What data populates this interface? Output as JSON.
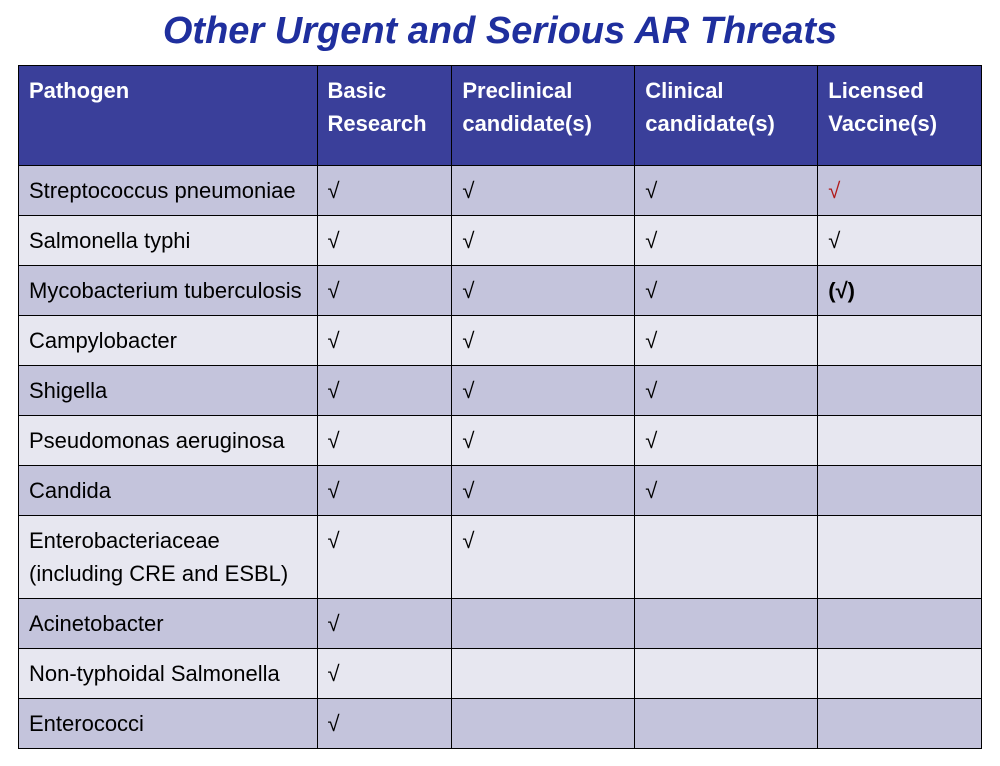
{
  "title": {
    "text": "Other Urgent and Serious AR Threats",
    "color": "#1f2f9e",
    "fontsize": 38
  },
  "table": {
    "header_bg": "#3a3f9a",
    "header_fg": "#ffffff",
    "header_fontsize": 22,
    "row_alt_bg_1": "#c4c4dc",
    "row_alt_bg_2": "#e7e7f0",
    "body_fg": "#000000",
    "body_fontsize": 22,
    "checkmark": "√",
    "checkmark_color": "#000000",
    "checkmark_highlight_color": "#b11a1a",
    "paren_check": "(√)",
    "col_widths": [
      "31%",
      "14%",
      "19%",
      "19%",
      "17%"
    ],
    "columns": [
      "Pathogen",
      "Basic Research",
      "Preclinical candidate(s)",
      "Clinical candidate(s)",
      "Licensed Vaccine(s)"
    ],
    "rows": [
      {
        "pathogen": "Streptococcus pneumoniae",
        "basic": "check",
        "preclinical": "check",
        "clinical": "check",
        "licensed": "check_red",
        "shade": 1
      },
      {
        "pathogen": "Salmonella typhi",
        "basic": "check",
        "preclinical": "check",
        "clinical": "check",
        "licensed": "check",
        "shade": 2
      },
      {
        "pathogen": "Mycobacterium tuberculosis",
        "basic": "check",
        "preclinical": "check",
        "clinical": "check",
        "licensed": "paren_check",
        "shade": 1
      },
      {
        "pathogen": "Campylobacter",
        "basic": "check",
        "preclinical": "check",
        "clinical": "check",
        "licensed": "",
        "shade": 2
      },
      {
        "pathogen": "Shigella",
        "basic": "check",
        "preclinical": "check",
        "clinical": "check",
        "licensed": "",
        "shade": 1
      },
      {
        "pathogen": "Pseudomonas aeruginosa",
        "basic": "check",
        "preclinical": "check",
        "clinical": "check",
        "licensed": "",
        "shade": 2
      },
      {
        "pathogen": "Candida",
        "basic": "check",
        "preclinical": "check",
        "clinical": "check",
        "licensed": "",
        "shade": 1
      },
      {
        "pathogen": "Enterobacteriaceae (including CRE and ESBL)",
        "basic": "check",
        "preclinical": "check",
        "clinical": "",
        "licensed": "",
        "shade": 2
      },
      {
        "pathogen": "Acinetobacter",
        "basic": "check",
        "preclinical": "",
        "clinical": "",
        "licensed": "",
        "shade": 1
      },
      {
        "pathogen": "Non-typhoidal Salmonella",
        "basic": "check",
        "preclinical": "",
        "clinical": "",
        "licensed": "",
        "shade": 2
      },
      {
        "pathogen": "Enterococci",
        "basic": "check",
        "preclinical": "",
        "clinical": "",
        "licensed": "",
        "shade": 1
      }
    ]
  }
}
